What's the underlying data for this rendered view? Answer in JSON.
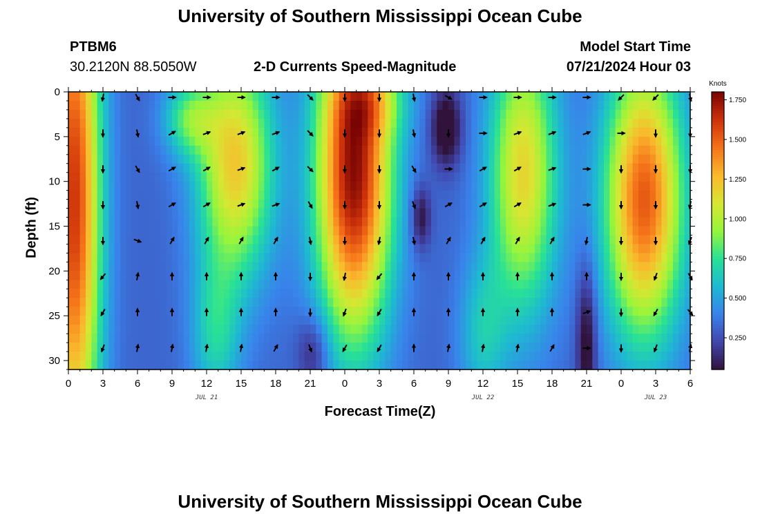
{
  "header": {
    "title": "University of Southern Mississippi Ocean Cube",
    "station": "PTBM6",
    "coords": "30.2120N  88.5050W",
    "plot_title": "2-D Currents Speed-Magnitude",
    "model_label": "Model Start Time",
    "model_time": "07/21/2024 Hour 03",
    "footer_title": "University of Southern Mississippi Ocean Cube"
  },
  "chart_data": {
    "type": "heatmap",
    "title": "2-D Currents Speed-Magnitude",
    "xlabel": "Forecast Time(Z)",
    "ylabel": "Depth (ft)",
    "colorbar_label": "Knots",
    "x_range_hours": [
      0,
      54
    ],
    "x_ticks": [
      {
        "h": 0,
        "label": "0"
      },
      {
        "h": 3,
        "label": "3"
      },
      {
        "h": 6,
        "label": "6"
      },
      {
        "h": 9,
        "label": "9"
      },
      {
        "h": 12,
        "label": "12"
      },
      {
        "h": 15,
        "label": "15"
      },
      {
        "h": 18,
        "label": "18"
      },
      {
        "h": 21,
        "label": "21"
      },
      {
        "h": 24,
        "label": "0"
      },
      {
        "h": 27,
        "label": "3"
      },
      {
        "h": 30,
        "label": "6"
      },
      {
        "h": 33,
        "label": "9"
      },
      {
        "h": 36,
        "label": "12"
      },
      {
        "h": 39,
        "label": "15"
      },
      {
        "h": 42,
        "label": "18"
      },
      {
        "h": 45,
        "label": "21"
      },
      {
        "h": 48,
        "label": "0"
      },
      {
        "h": 51,
        "label": "3"
      },
      {
        "h": 54,
        "label": "6"
      }
    ],
    "date_labels": [
      {
        "h": 12,
        "label": "JUL 21"
      },
      {
        "h": 36,
        "label": "JUL 22"
      },
      {
        "h": 51,
        "label": "JUL 23"
      }
    ],
    "y_range_ft": [
      0,
      31
    ],
    "y_ticks": [
      0,
      5,
      10,
      15,
      20,
      25,
      30
    ],
    "colorbar_range": [
      0.05,
      1.8
    ],
    "colorbar_ticks": [
      "0.250",
      "0.500",
      "0.750",
      "1.000",
      "1.250",
      "1.500",
      "1.750"
    ],
    "colorbar_tick_values": [
      0.25,
      0.5,
      0.75,
      1.0,
      1.25,
      1.5,
      1.75
    ],
    "speed_blobs": [
      {
        "t": 0.5,
        "d": 12,
        "st": 1.6,
        "sd": 22,
        "a": 1.3
      },
      {
        "t": 14.5,
        "d": 8,
        "st": 2.3,
        "sd": 9,
        "a": 0.9
      },
      {
        "t": 10.5,
        "d": 3,
        "st": 1.6,
        "sd": 3,
        "a": 0.45
      },
      {
        "t": 24.8,
        "d": 9,
        "st": 2.3,
        "sd": 13,
        "a": 1.45
      },
      {
        "t": 26.5,
        "d": 1,
        "st": 2.2,
        "sd": 3,
        "a": 0.3
      },
      {
        "t": 39.5,
        "d": 9,
        "st": 2.1,
        "sd": 11,
        "a": 0.85
      },
      {
        "t": 50,
        "d": 12,
        "st": 2.4,
        "sd": 11,
        "a": 1.2
      },
      {
        "t": 12.8,
        "d": 27,
        "st": 1.5,
        "sd": 6,
        "a": 0.35
      },
      {
        "t": 36,
        "d": 27,
        "st": 1.5,
        "sd": 6,
        "a": 0.3
      }
    ],
    "speed_lows": [
      {
        "t": 32.8,
        "d": 4,
        "st": 0.9,
        "sd": 3,
        "a": 0.4
      },
      {
        "t": 30.6,
        "d": 14,
        "st": 0.6,
        "sd": 2.5,
        "a": 0.3
      },
      {
        "t": 45,
        "d": 28,
        "st": 0.6,
        "sd": 6,
        "a": 0.35
      },
      {
        "t": 21.3,
        "d": 29,
        "st": 1.0,
        "sd": 3,
        "a": 0.25
      }
    ],
    "vector_times": [
      3,
      6,
      9,
      12,
      15,
      18,
      21,
      24,
      27,
      30,
      33,
      36,
      39,
      42,
      45,
      48,
      51,
      54
    ],
    "vector_depths": [
      0,
      4,
      8,
      12,
      16,
      20,
      24,
      28
    ],
    "vector_angles_deg": [
      [
        100,
        60,
        0,
        0,
        0,
        0,
        45,
        90,
        90,
        80,
        30,
        0,
        0,
        0,
        0,
        135,
        135,
        80
      ],
      [
        90,
        80,
        -30,
        -20,
        -20,
        -20,
        45,
        90,
        90,
        80,
        90,
        0,
        -20,
        -20,
        -20,
        0,
        90,
        90
      ],
      [
        90,
        60,
        -30,
        -30,
        -20,
        -30,
        45,
        90,
        90,
        60,
        0,
        -30,
        -30,
        -20,
        0,
        90,
        90,
        90
      ],
      [
        90,
        80,
        -30,
        -30,
        -20,
        -20,
        60,
        90,
        90,
        70,
        -30,
        -30,
        -30,
        -20,
        0,
        90,
        90,
        100
      ],
      [
        90,
        20,
        -60,
        -60,
        -60,
        -60,
        80,
        90,
        100,
        80,
        -60,
        -60,
        -60,
        -60,
        100,
        90,
        90,
        110
      ],
      [
        130,
        -80,
        -90,
        -90,
        -90,
        -90,
        90,
        100,
        130,
        -90,
        -90,
        -90,
        -90,
        -90,
        -90,
        90,
        110,
        60
      ],
      [
        120,
        -90,
        -90,
        -90,
        -90,
        -90,
        90,
        110,
        120,
        -90,
        -90,
        -90,
        -90,
        -90,
        -20,
        90,
        120,
        50
      ],
      [
        110,
        -80,
        -80,
        -80,
        -80,
        -60,
        70,
        120,
        120,
        -90,
        -80,
        -80,
        -80,
        -60,
        0,
        90,
        110,
        -80
      ]
    ]
  }
}
